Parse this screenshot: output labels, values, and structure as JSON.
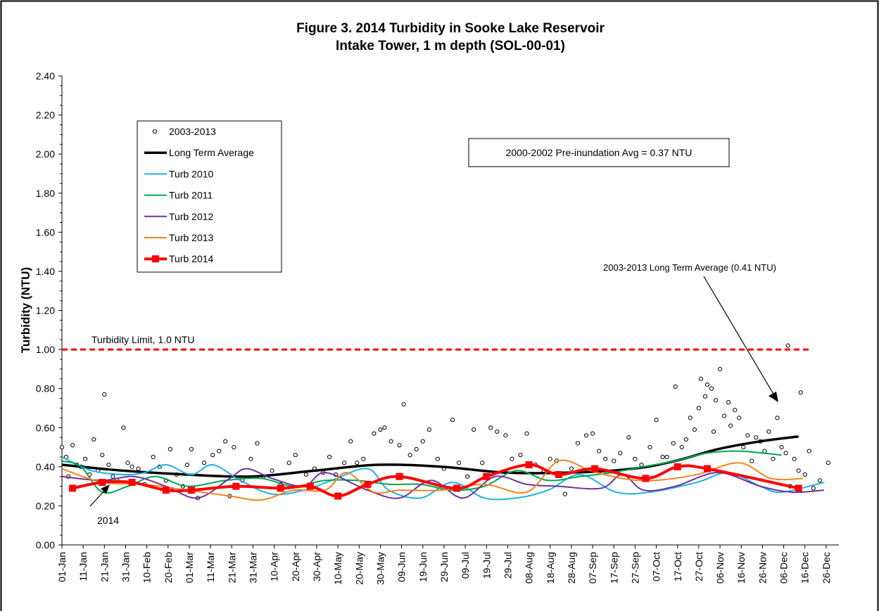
{
  "chart_data": {
    "type": "line",
    "title": "Figure 3. 2014 Turbidity in Sooke Lake Reservoir",
    "subtitle": "Intake Tower, 1 m depth (SOL-00-01)",
    "y_label": "Turbidity (NTU)",
    "xlim": [
      1,
      367
    ],
    "ylim": [
      0,
      2.4
    ],
    "xticks": [
      {
        "value": 1,
        "label": "01-Jan"
      },
      {
        "value": 11,
        "label": "11-Jan"
      },
      {
        "value": 21,
        "label": "21-Jan"
      },
      {
        "value": 31,
        "label": "31-Jan"
      },
      {
        "value": 41,
        "label": "10-Feb"
      },
      {
        "value": 51,
        "label": "20-Feb"
      },
      {
        "value": 61,
        "label": "01-Mar"
      },
      {
        "value": 71,
        "label": "11-Mar"
      },
      {
        "value": 81,
        "label": "21-Mar"
      },
      {
        "value": 91,
        "label": "31-Mar"
      },
      {
        "value": 101,
        "label": "10-Apr"
      },
      {
        "value": 111,
        "label": "20-Apr"
      },
      {
        "value": 121,
        "label": "30-Apr"
      },
      {
        "value": 131,
        "label": "10-May"
      },
      {
        "value": 141,
        "label": "20-May"
      },
      {
        "value": 151,
        "label": "30-May"
      },
      {
        "value": 161,
        "label": "09-Jun"
      },
      {
        "value": 171,
        "label": "19-Jun"
      },
      {
        "value": 181,
        "label": "29-Jun"
      },
      {
        "value": 191,
        "label": "09-Jul"
      },
      {
        "value": 201,
        "label": "19-Jul"
      },
      {
        "value": 211,
        "label": "29-Jul"
      },
      {
        "value": 221,
        "label": "08-Aug"
      },
      {
        "value": 231,
        "label": "18-Aug"
      },
      {
        "value": 241,
        "label": "28-Aug"
      },
      {
        "value": 251,
        "label": "07-Sep"
      },
      {
        "value": 261,
        "label": "17-Sep"
      },
      {
        "value": 271,
        "label": "27-Sep"
      },
      {
        "value": 281,
        "label": "07-Oct"
      },
      {
        "value": 291,
        "label": "17-Oct"
      },
      {
        "value": 301,
        "label": "27-Oct"
      },
      {
        "value": 311,
        "label": "06-Nov"
      },
      {
        "value": 321,
        "label": "16-Nov"
      },
      {
        "value": 331,
        "label": "26-Nov"
      },
      {
        "value": 341,
        "label": "06-Dec"
      },
      {
        "value": 351,
        "label": "16-Dec"
      },
      {
        "value": 361,
        "label": "26-Dec"
      }
    ],
    "yticks": [
      {
        "value": 0,
        "label": "0.00"
      },
      {
        "value": 0.2,
        "label": "0.20"
      },
      {
        "value": 0.4,
        "label": "0.40"
      },
      {
        "value": 0.6,
        "label": "0.60"
      },
      {
        "value": 0.8,
        "label": "0.80"
      },
      {
        "value": 1,
        "label": "1.00"
      },
      {
        "value": 1.2,
        "label": "1.20"
      },
      {
        "value": 1.4,
        "label": "1.40"
      },
      {
        "value": 1.6,
        "label": "1.60"
      },
      {
        "value": 1.8,
        "label": "1.80"
      },
      {
        "value": 2,
        "label": "2.00"
      },
      {
        "value": 2.2,
        "label": "2.20"
      },
      {
        "value": 2.4,
        "label": "2.40"
      }
    ],
    "legend": "upper left",
    "series": [
      {
        "name": "2003-2013",
        "type": "scatter",
        "color": "#000000",
        "x": [
          1,
          3,
          4,
          6,
          8,
          10,
          12,
          14,
          16,
          18,
          20,
          21,
          23,
          25,
          27,
          30,
          32,
          34,
          37,
          40,
          44,
          47,
          50,
          52,
          55,
          58,
          60,
          62,
          65,
          68,
          72,
          75,
          78,
          80,
          82,
          86,
          90,
          93,
          96,
          100,
          104,
          108,
          111,
          116,
          120,
          124,
          127,
          130,
          134,
          137,
          140,
          143,
          148,
          151,
          153,
          156,
          160,
          162,
          165,
          168,
          171,
          174,
          178,
          181,
          185,
          188,
          192,
          195,
          199,
          203,
          206,
          210,
          213,
          217,
          220,
          224,
          228,
          231,
          234,
          238,
          241,
          244,
          248,
          251,
          254,
          257,
          261,
          264,
          268,
          271,
          274,
          278,
          281,
          284,
          286,
          289,
          290,
          293,
          295,
          297,
          299,
          301,
          302,
          304,
          305,
          307,
          308,
          309,
          311,
          313,
          315,
          316,
          318,
          320,
          322,
          324,
          326,
          328,
          330,
          332,
          334,
          336,
          338,
          340,
          342,
          343,
          344,
          346,
          348,
          349,
          351,
          353,
          355,
          358,
          362
        ],
        "values": [
          0.5,
          0.45,
          0.35,
          0.51,
          0.41,
          0.4,
          0.44,
          0.36,
          0.54,
          0.38,
          0.46,
          0.77,
          0.41,
          0.35,
          0.33,
          0.6,
          0.42,
          0.4,
          0.39,
          0.31,
          0.45,
          0.4,
          0.33,
          0.49,
          0.36,
          0.3,
          0.41,
          0.49,
          0.24,
          0.42,
          0.46,
          0.48,
          0.53,
          0.25,
          0.5,
          0.33,
          0.44,
          0.52,
          0.35,
          0.38,
          0.31,
          0.42,
          0.46,
          0.36,
          0.39,
          0.37,
          0.45,
          0.36,
          0.42,
          0.53,
          0.42,
          0.44,
          0.57,
          0.59,
          0.6,
          0.53,
          0.51,
          0.72,
          0.46,
          0.49,
          0.53,
          0.59,
          0.44,
          0.39,
          0.64,
          0.42,
          0.35,
          0.59,
          0.42,
          0.6,
          0.58,
          0.56,
          0.44,
          0.46,
          0.57,
          0.41,
          0.38,
          0.44,
          0.43,
          0.26,
          0.39,
          0.52,
          0.56,
          0.57,
          0.48,
          0.44,
          0.43,
          0.47,
          0.55,
          0.44,
          0.41,
          0.5,
          0.64,
          0.45,
          0.45,
          0.52,
          0.81,
          0.5,
          0.54,
          0.65,
          0.59,
          0.7,
          0.85,
          0.76,
          0.82,
          0.8,
          0.58,
          0.74,
          0.9,
          0.66,
          0.73,
          0.61,
          0.69,
          0.65,
          0.5,
          0.56,
          0.43,
          0.55,
          0.53,
          0.48,
          0.58,
          0.44,
          0.65,
          0.5,
          0.47,
          1.02,
          0.3,
          0.44,
          0.38,
          0.78,
          0.36,
          0.48,
          0.29,
          0.33,
          0.42
        ]
      },
      {
        "name": "Long Term Average",
        "type": "line",
        "color": "#000000",
        "width": 3.5,
        "x": [
          1,
          30,
          60,
          90,
          120,
          150,
          180,
          210,
          240,
          270,
          290,
          310,
          330,
          348
        ],
        "values": [
          0.41,
          0.38,
          0.36,
          0.35,
          0.38,
          0.41,
          0.4,
          0.37,
          0.37,
          0.39,
          0.43,
          0.49,
          0.53,
          0.555
        ]
      },
      {
        "name": "Turb 2010",
        "type": "line",
        "color": "#1fb0e8",
        "width": 2,
        "x": [
          1,
          15,
          30,
          40,
          50,
          62,
          72,
          85,
          100,
          115,
          128,
          145,
          155,
          170,
          185,
          200,
          215,
          230,
          245,
          262,
          278,
          300,
          315,
          330,
          340,
          360
        ],
        "values": [
          0.45,
          0.38,
          0.36,
          0.37,
          0.41,
          0.36,
          0.41,
          0.33,
          0.26,
          0.28,
          0.33,
          0.39,
          0.28,
          0.24,
          0.32,
          0.24,
          0.24,
          0.28,
          0.36,
          0.27,
          0.27,
          0.32,
          0.37,
          0.3,
          0.27,
          0.32
        ]
      },
      {
        "name": "Turb 2011",
        "type": "line",
        "color": "#00a651",
        "width": 2,
        "x": [
          1,
          10,
          20,
          32,
          45,
          60,
          78,
          95,
          110,
          125,
          140,
          155,
          170,
          185,
          200,
          215,
          230,
          245,
          260,
          275,
          290,
          305,
          320,
          340
        ],
        "values": [
          0.43,
          0.4,
          0.27,
          0.3,
          0.35,
          0.3,
          0.33,
          0.34,
          0.3,
          0.33,
          0.33,
          0.31,
          0.31,
          0.28,
          0.3,
          0.38,
          0.33,
          0.35,
          0.37,
          0.4,
          0.43,
          0.47,
          0.48,
          0.46
        ]
      },
      {
        "name": "Turb 2012",
        "type": "line",
        "color": "#7030a0",
        "width": 2,
        "x": [
          1,
          20,
          35,
          50,
          65,
          80,
          88,
          100,
          115,
          125,
          145,
          160,
          175,
          190,
          205,
          220,
          235,
          255,
          265,
          275,
          290,
          310,
          330,
          345,
          360
        ],
        "values": [
          0.35,
          0.33,
          0.35,
          0.3,
          0.24,
          0.34,
          0.39,
          0.34,
          0.3,
          0.37,
          0.28,
          0.24,
          0.33,
          0.24,
          0.35,
          0.31,
          0.3,
          0.29,
          0.36,
          0.28,
          0.3,
          0.37,
          0.3,
          0.27,
          0.28
        ]
      },
      {
        "name": "Turb 2013",
        "type": "line",
        "color": "#f58220",
        "width": 2,
        "x": [
          1,
          20,
          40,
          60,
          80,
          95,
          110,
          125,
          135,
          148,
          160,
          180,
          200,
          220,
          235,
          250,
          265,
          280,
          300,
          320,
          335,
          350
        ],
        "values": [
          0.39,
          0.32,
          0.31,
          0.28,
          0.25,
          0.23,
          0.28,
          0.28,
          0.37,
          0.27,
          0.28,
          0.28,
          0.31,
          0.27,
          0.43,
          0.38,
          0.34,
          0.33,
          0.36,
          0.42,
          0.34,
          0.34
        ]
      },
      {
        "name": "Turb 2014",
        "type": "line",
        "color": "#ff0000",
        "width": 4,
        "marker": "square",
        "x": [
          6,
          20,
          34,
          50,
          62,
          83,
          104,
          118,
          131,
          145,
          160,
          187,
          201,
          221,
          235,
          252,
          276,
          291,
          305,
          348
        ],
        "values": [
          0.29,
          0.32,
          0.32,
          0.28,
          0.28,
          0.3,
          0.29,
          0.3,
          0.25,
          0.31,
          0.35,
          0.29,
          0.35,
          0.41,
          0.36,
          0.39,
          0.34,
          0.4,
          0.39,
          0.29
        ]
      }
    ],
    "reference_line": {
      "value": 1.0,
      "label": "Turbidity Limit, 1.0 NTU",
      "color": "#ff0000"
    },
    "annotations": [
      {
        "text": "2000-2002 Pre-inundation Avg = 0.37 NTU"
      },
      {
        "text": "2003-2013 Long Term Average (0.41 NTU)"
      },
      {
        "text": "2014"
      }
    ]
  }
}
